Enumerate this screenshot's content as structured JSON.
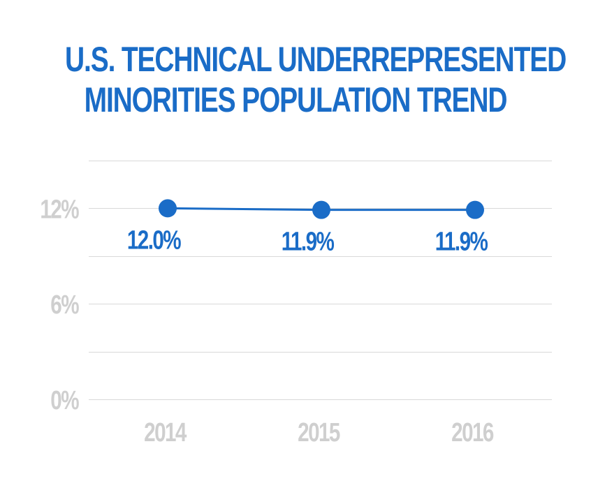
{
  "title_lines": [
    "U.S. TECHNICAL UNDERREPRESENTED",
    "MINORITIES POPULATION TREND"
  ],
  "chart_data": {
    "type": "line",
    "title": "U.S. TECHNICAL UNDERREPRESENTED MINORITIES POPULATION TREND",
    "categories": [
      "2014",
      "2015",
      "2016"
    ],
    "series": [
      {
        "values": [
          12.0,
          11.9,
          11.9
        ],
        "data_labels": [
          "12.0%",
          "11.9%",
          "11.9%"
        ]
      }
    ],
    "y_ticks": [
      {
        "value": 0,
        "label": "0%"
      },
      {
        "value": 6,
        "label": "6%"
      },
      {
        "value": 12,
        "label": "12%"
      }
    ],
    "ylim": [
      0,
      15
    ],
    "grid": true,
    "colors": {
      "line": "#1a6cc7",
      "grid": "#d9d9d9",
      "tick_text": "#cfcfcf",
      "title": "#1a6cc7"
    }
  }
}
